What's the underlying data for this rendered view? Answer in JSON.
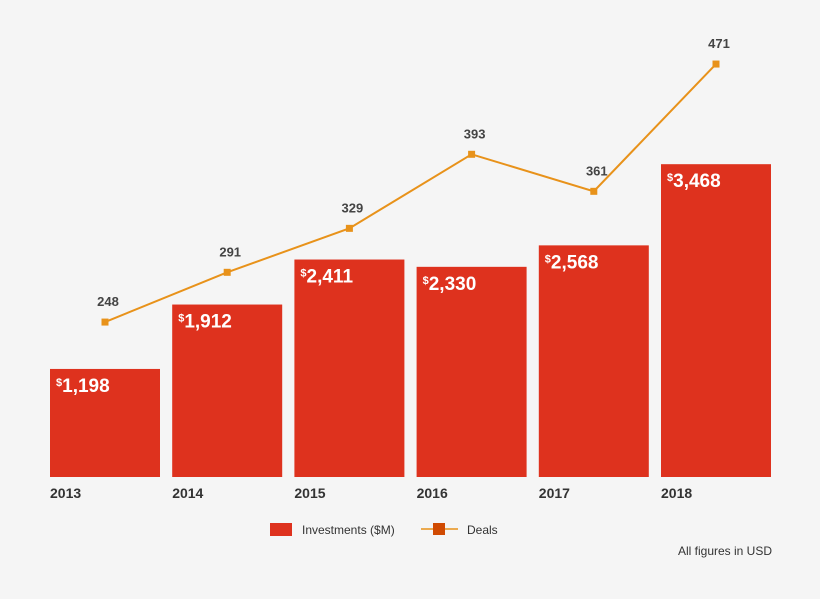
{
  "chart_data": {
    "type": "bar",
    "categories": [
      "2013",
      "2014",
      "2015",
      "2016",
      "2017",
      "2018"
    ],
    "series": [
      {
        "name": "Investments ($M)",
        "type": "bar",
        "values": [
          1198,
          1912,
          2411,
          2330,
          2568,
          3468
        ],
        "color": "#de321e",
        "label_prefix": "$"
      },
      {
        "name": "Deals",
        "type": "line",
        "values": [
          248,
          291,
          329,
          393,
          361,
          471
        ],
        "color": "#e8921a",
        "marker_color": "#d04a02"
      }
    ],
    "legend": "bottom-center",
    "grid": false,
    "note": "All figures in USD"
  }
}
